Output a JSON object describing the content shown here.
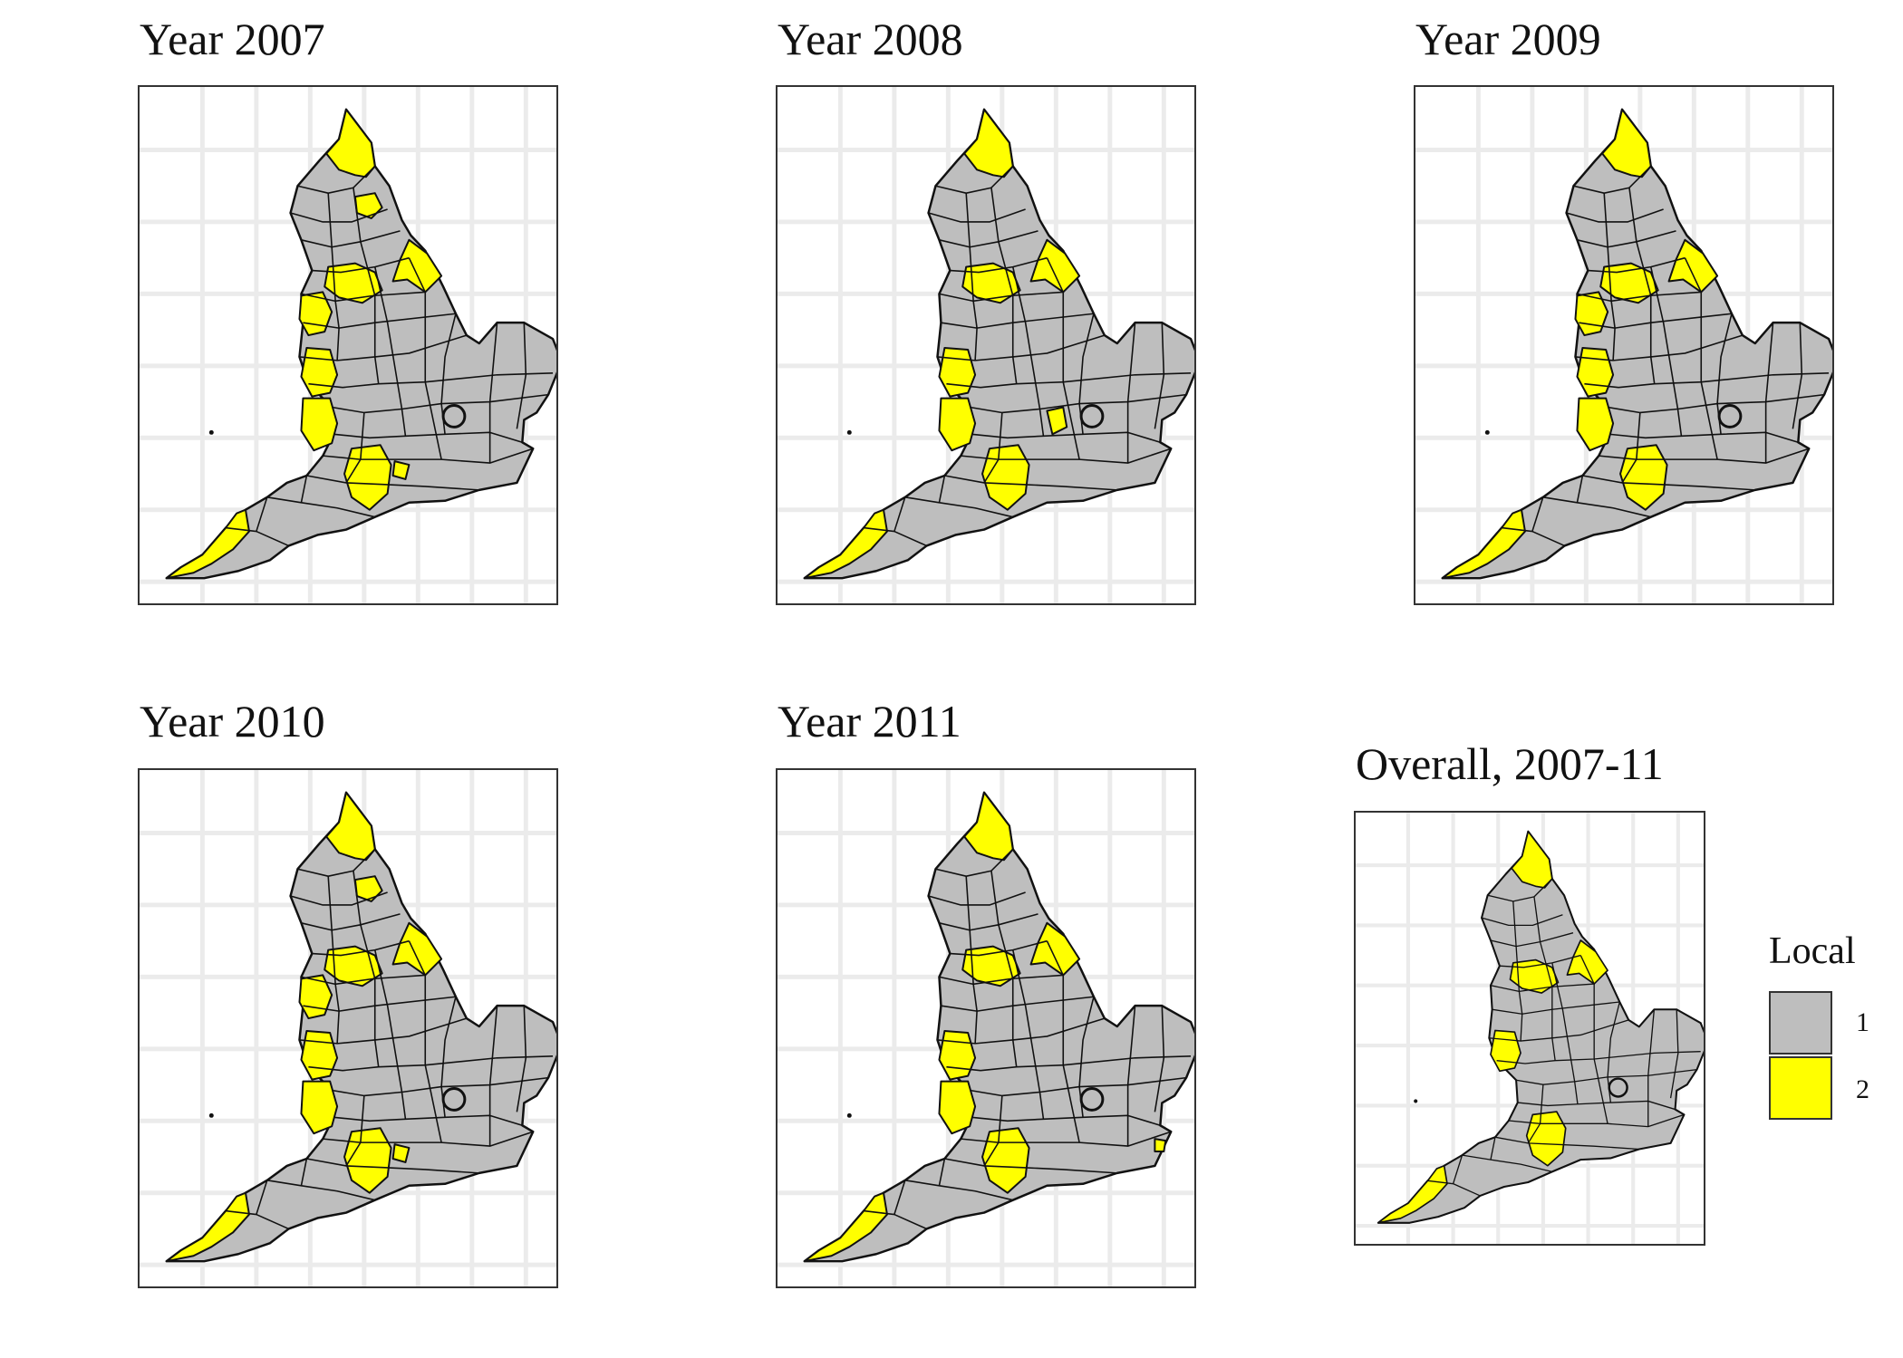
{
  "maps": [
    {
      "title": "Year 2007",
      "local_levels": {
        "yellow_regions": [
          "north-east",
          "north-yorkshire-east",
          "east-riding",
          "west-yorkshire",
          "lancashire",
          "cheshire",
          "shropshire",
          "wiltshire",
          "cornwall",
          "bristol"
        ]
      }
    },
    {
      "title": "Year 2008",
      "local_levels": {
        "yellow_regions": [
          "north-east",
          "east-riding",
          "west-yorkshire",
          "cheshire",
          "shropshire",
          "wiltshire",
          "cornwall",
          "buckinghamshire"
        ]
      }
    },
    {
      "title": "Year 2009",
      "local_levels": {
        "yellow_regions": [
          "north-east",
          "east-riding",
          "west-yorkshire",
          "lancashire",
          "cheshire",
          "shropshire",
          "wiltshire",
          "cornwall"
        ]
      }
    },
    {
      "title": "Year 2010",
      "local_levels": {
        "yellow_regions": [
          "north-east",
          "north-yorkshire-east",
          "east-riding",
          "west-yorkshire",
          "lancashire",
          "cheshire",
          "shropshire",
          "wiltshire",
          "cornwall",
          "bristol"
        ]
      }
    },
    {
      "title": "Year 2011",
      "local_levels": {
        "yellow_regions": [
          "north-east",
          "east-riding",
          "west-yorkshire",
          "cheshire",
          "shropshire",
          "wiltshire",
          "cornwall",
          "kent-spot"
        ]
      }
    },
    {
      "title": "Overall, 2007-11",
      "local_levels": {
        "yellow_regions": [
          "north-east",
          "east-riding",
          "west-yorkshire",
          "cheshire",
          "wiltshire",
          "cornwall"
        ]
      }
    }
  ],
  "legend": {
    "title": "Local",
    "items": [
      {
        "label": "1",
        "color": "#bebebe"
      },
      {
        "label": "2",
        "color": "#ffff00"
      }
    ]
  },
  "colors": {
    "low": "#bebebe",
    "high": "#ffff00",
    "border": "#111111",
    "grid": "#ebebeb"
  }
}
